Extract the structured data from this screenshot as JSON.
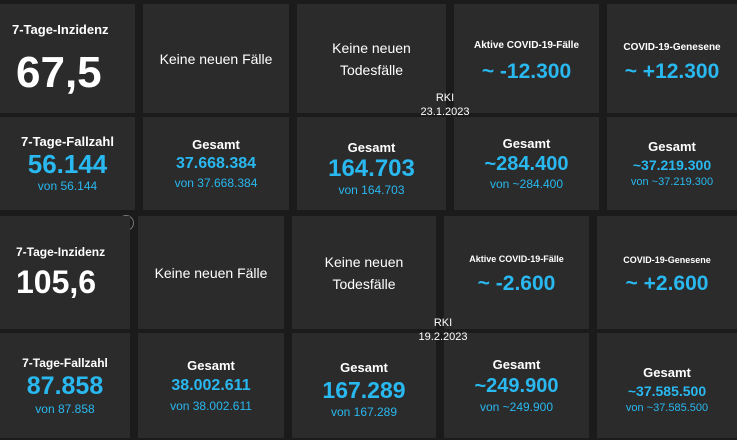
{
  "snapshot1": {
    "incidence": {
      "label": "7-Tage-Inzidenz",
      "value": "67,5"
    },
    "cases_row": {
      "value_label": "7-Tage-Fallzahl",
      "value": "56.144",
      "sub": "von 56.144"
    },
    "new_cases": {
      "text": "Keine neuen Fälle"
    },
    "new_deaths": {
      "text_line1": "Keine neuen",
      "text_line2": "Todesfälle"
    },
    "active": {
      "label": "Aktive COVID-19-Fälle",
      "value": "~ -12.300"
    },
    "recovered": {
      "label": "COVID-19-Genesene",
      "value": "~ +12.300"
    },
    "total_cases": {
      "label": "Gesamt",
      "value": "37.668.384",
      "sub": "von 37.668.384"
    },
    "total_deaths": {
      "label": "Gesamt",
      "value": "164.703",
      "sub": "von 164.703"
    },
    "total_active": {
      "label": "Gesamt",
      "value": "~284.400",
      "sub": "von ~284.400"
    },
    "total_recovered": {
      "label": "Gesamt",
      "value": "~37.219.300",
      "sub": "von ~37.219.300"
    },
    "source": "RKI",
    "date": "23.1.2023"
  },
  "snapshot2": {
    "incidence": {
      "label": "7-Tage-Inzidenz",
      "value": "105,6"
    },
    "cases_row": {
      "value_label": "7-Tage-Fallzahl",
      "value": "87.858",
      "sub": "von 87.858"
    },
    "new_cases": {
      "text": "Keine neuen Fälle"
    },
    "new_deaths": {
      "text_line1": "Keine neuen",
      "text_line2": "Todesfälle"
    },
    "active": {
      "label": "Aktive COVID-19-Fälle",
      "value": "~ -2.600"
    },
    "recovered": {
      "label": "COVID-19-Genesene",
      "value": "~ +2.600"
    },
    "total_cases": {
      "label": "Gesamt",
      "value": "38.002.611",
      "sub": "von 38.002.611"
    },
    "total_deaths": {
      "label": "Gesamt",
      "value": "167.289",
      "sub": "von 167.289"
    },
    "total_active": {
      "label": "Gesamt",
      "value": "~249.900",
      "sub": "von ~249.900"
    },
    "total_recovered": {
      "label": "Gesamt",
      "value": "~37.585.500",
      "sub": "von ~37.585.500"
    },
    "source": "RKI",
    "date": "19.2.2023"
  },
  "icons": {
    "fullscreen": "expand-icon"
  },
  "colors": {
    "accent": "#29b8ef",
    "tile": "#2b2b2b",
    "background": "#1b1b1b"
  }
}
